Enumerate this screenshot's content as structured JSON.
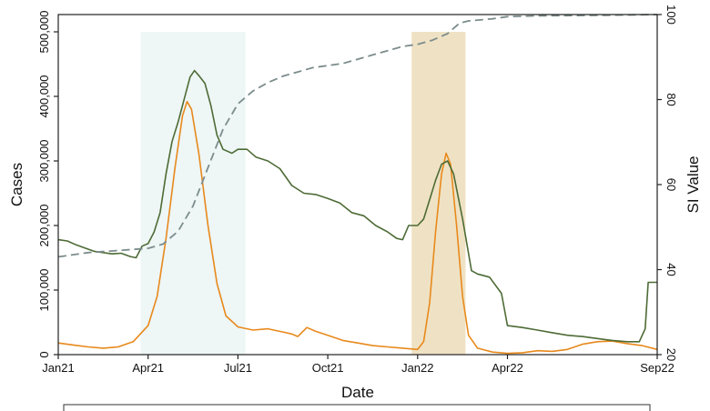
{
  "chart_data": {
    "type": "line",
    "xlabel": "Date",
    "ylabel_left": "Cases",
    "ylabel_right": "SI Value",
    "x_ticks": [
      "Jan21",
      "Apr21",
      "Jul21",
      "Oct21",
      "Jan22",
      "Apr22",
      "Sep22"
    ],
    "x_tick_months": [
      0,
      3,
      6,
      9,
      12,
      15,
      20
    ],
    "xlim_months": [
      0,
      20
    ],
    "ylim_left": [
      0,
      500000
    ],
    "y_ticks_left": [
      "0",
      "100,000",
      "200,000",
      "300,000",
      "400,000",
      "500,000"
    ],
    "y_tick_values_left": [
      0,
      100000,
      200000,
      300000,
      400000,
      500000
    ],
    "ylim_right": [
      20,
      100
    ],
    "y_ticks_right": [
      "20",
      "40",
      "60",
      "80",
      "100"
    ],
    "y_tick_values_right": [
      20,
      40,
      60,
      80,
      100
    ],
    "shaded_regions": [
      {
        "start_month": 2.75,
        "end_month": 6.25,
        "color": "#eef6f6"
      },
      {
        "start_month": 11.8,
        "end_month": 13.6,
        "color": "#efe2c4"
      }
    ],
    "series": [
      {
        "axis": "left",
        "color": "#e8891c",
        "style": "solid",
        "points": [
          [
            0,
            18000
          ],
          [
            0.5,
            15000
          ],
          [
            1,
            12000
          ],
          [
            1.5,
            10000
          ],
          [
            2,
            12000
          ],
          [
            2.5,
            20000
          ],
          [
            3,
            45000
          ],
          [
            3.3,
            90000
          ],
          [
            3.6,
            180000
          ],
          [
            3.9,
            290000
          ],
          [
            4.15,
            370000
          ],
          [
            4.3,
            392000
          ],
          [
            4.45,
            380000
          ],
          [
            4.7,
            310000
          ],
          [
            5,
            200000
          ],
          [
            5.3,
            110000
          ],
          [
            5.6,
            60000
          ],
          [
            6,
            43000
          ],
          [
            6.5,
            38000
          ],
          [
            7,
            40000
          ],
          [
            7.5,
            35000
          ],
          [
            7.8,
            32000
          ],
          [
            8,
            28000
          ],
          [
            8.3,
            42000
          ],
          [
            8.6,
            36000
          ],
          [
            9,
            30000
          ],
          [
            9.5,
            22000
          ],
          [
            10,
            18000
          ],
          [
            10.5,
            14000
          ],
          [
            11,
            12000
          ],
          [
            11.5,
            10000
          ],
          [
            12,
            8000
          ],
          [
            12.2,
            20000
          ],
          [
            12.4,
            80000
          ],
          [
            12.6,
            190000
          ],
          [
            12.8,
            280000
          ],
          [
            12.95,
            312000
          ],
          [
            13.1,
            295000
          ],
          [
            13.3,
            200000
          ],
          [
            13.5,
            90000
          ],
          [
            13.7,
            30000
          ],
          [
            14,
            10000
          ],
          [
            14.5,
            4000
          ],
          [
            15,
            2000
          ],
          [
            15.5,
            3000
          ],
          [
            16,
            6000
          ],
          [
            16.5,
            5000
          ],
          [
            17,
            8000
          ],
          [
            17.5,
            16000
          ],
          [
            18,
            20000
          ],
          [
            18.5,
            21000
          ],
          [
            19,
            17000
          ],
          [
            19.5,
            14000
          ],
          [
            20,
            8000
          ]
        ]
      },
      {
        "axis": "left",
        "color": "#4d6b35",
        "style": "solid",
        "points": [
          [
            0,
            178000
          ],
          [
            0.3,
            176000
          ],
          [
            0.6,
            170000
          ],
          [
            0.9,
            165000
          ],
          [
            1.2,
            160000
          ],
          [
            1.5,
            158000
          ],
          [
            1.8,
            156000
          ],
          [
            2.1,
            157000
          ],
          [
            2.4,
            152000
          ],
          [
            2.6,
            150000
          ],
          [
            2.8,
            168000
          ],
          [
            3,
            172000
          ],
          [
            3.2,
            190000
          ],
          [
            3.4,
            220000
          ],
          [
            3.6,
            280000
          ],
          [
            3.8,
            330000
          ],
          [
            4,
            360000
          ],
          [
            4.2,
            395000
          ],
          [
            4.4,
            430000
          ],
          [
            4.55,
            440000
          ],
          [
            4.7,
            432000
          ],
          [
            4.9,
            420000
          ],
          [
            5.1,
            385000
          ],
          [
            5.3,
            340000
          ],
          [
            5.5,
            318000
          ],
          [
            5.8,
            312000
          ],
          [
            6,
            318000
          ],
          [
            6.3,
            318000
          ],
          [
            6.6,
            306000
          ],
          [
            7,
            300000
          ],
          [
            7.4,
            288000
          ],
          [
            7.8,
            262000
          ],
          [
            8.2,
            250000
          ],
          [
            8.6,
            248000
          ],
          [
            9,
            242000
          ],
          [
            9.4,
            235000
          ],
          [
            9.8,
            220000
          ],
          [
            10.2,
            215000
          ],
          [
            10.6,
            200000
          ],
          [
            11,
            190000
          ],
          [
            11.3,
            180000
          ],
          [
            11.5,
            178000
          ],
          [
            11.7,
            200000
          ],
          [
            12,
            200000
          ],
          [
            12.2,
            210000
          ],
          [
            12.4,
            240000
          ],
          [
            12.6,
            270000
          ],
          [
            12.8,
            295000
          ],
          [
            13,
            300000
          ],
          [
            13.2,
            280000
          ],
          [
            13.5,
            210000
          ],
          [
            13.8,
            130000
          ],
          [
            14,
            125000
          ],
          [
            14.4,
            120000
          ],
          [
            14.8,
            95000
          ],
          [
            15,
            45000
          ],
          [
            15.5,
            42000
          ],
          [
            16,
            38000
          ],
          [
            16.5,
            34000
          ],
          [
            17,
            30000
          ],
          [
            17.5,
            28000
          ],
          [
            18,
            25000
          ],
          [
            18.5,
            22000
          ],
          [
            19,
            20000
          ],
          [
            19.4,
            20000
          ],
          [
            19.6,
            40000
          ],
          [
            19.7,
            112000
          ],
          [
            20,
            112000
          ]
        ]
      },
      {
        "axis": "right",
        "color": "#7c8c8c",
        "style": "dashed",
        "points": [
          [
            0,
            43
          ],
          [
            1,
            44
          ],
          [
            2,
            44.5
          ],
          [
            3,
            45
          ],
          [
            3.5,
            46
          ],
          [
            4,
            49
          ],
          [
            4.5,
            55
          ],
          [
            5,
            64
          ],
          [
            5.5,
            73
          ],
          [
            6,
            79
          ],
          [
            6.5,
            82
          ],
          [
            7,
            84
          ],
          [
            7.5,
            85.5
          ],
          [
            8,
            86.5
          ],
          [
            8.5,
            87.5
          ],
          [
            9,
            88
          ],
          [
            9.5,
            88.5
          ],
          [
            10,
            89.5
          ],
          [
            10.5,
            90.5
          ],
          [
            11,
            91.5
          ],
          [
            11.5,
            92.5
          ],
          [
            12,
            93
          ],
          [
            12.5,
            94
          ],
          [
            13,
            95.5
          ],
          [
            13.4,
            98
          ],
          [
            13.7,
            98.5
          ],
          [
            14.5,
            99
          ],
          [
            15,
            99.5
          ],
          [
            16,
            99.7
          ],
          [
            18,
            99.8
          ],
          [
            20,
            100
          ]
        ]
      }
    ]
  }
}
